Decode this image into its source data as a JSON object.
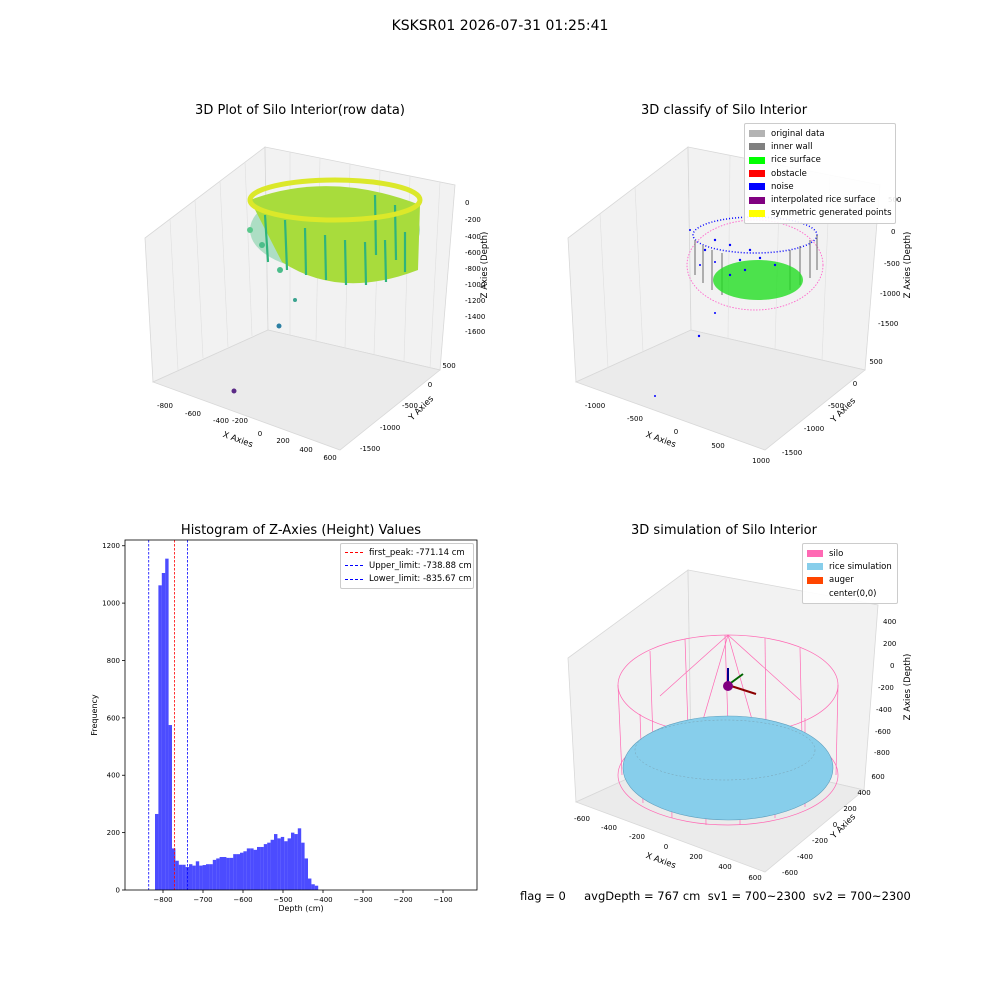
{
  "suptitle": "KSKSR01 2026-07-31 01:25:41",
  "panels": {
    "raw": {
      "title": "3D Plot of Silo Interior(row data)",
      "xlabel": "X Axies",
      "ylabel": "Y Axies",
      "zlabel": "Z Axies (Depth)",
      "xticks": [
        "-800",
        "-600",
        "-400",
        "-200",
        "0",
        "200",
        "400",
        "600"
      ],
      "yticks": [
        "500",
        "0",
        "-500",
        "-1000",
        "-1500"
      ],
      "zticks": [
        "0",
        "-200",
        "-400",
        "-600",
        "-800",
        "-1000",
        "-1200",
        "-1400",
        "-1600"
      ]
    },
    "classify": {
      "title": "3D classify of Silo Interior",
      "xlabel": "X Axies",
      "ylabel": "Y Axies",
      "zlabel": "Z Axies (Depth)",
      "xticks": [
        "-1000",
        "-500",
        "0",
        "500",
        "1000"
      ],
      "yticks": [
        "500",
        "0",
        "-500",
        "-1000",
        "-1500"
      ],
      "zticks": [
        "500",
        "0",
        "-500",
        "-1000",
        "-1500"
      ],
      "legend": [
        {
          "label": "original data",
          "color": "#b3b3b3"
        },
        {
          "label": "inner wall",
          "color": "#808080"
        },
        {
          "label": "rice surface",
          "color": "#00ff00"
        },
        {
          "label": "obstacle",
          "color": "#ff0000"
        },
        {
          "label": "noise",
          "color": "#0000ff"
        },
        {
          "label": "interpolated rice surface",
          "color": "#800080"
        },
        {
          "label": "symmetric generated points",
          "color": "#ffff00"
        }
      ]
    },
    "simulation": {
      "title": "3D simulation of Silo Interior",
      "xlabel": "X Axies",
      "ylabel": "Y Axies",
      "zlabel": "Z Axies (Depth)",
      "xticks": [
        "-600",
        "-400",
        "-200",
        "0",
        "200",
        "400",
        "600"
      ],
      "yticks": [
        "600",
        "400",
        "200",
        "0",
        "-200",
        "-400",
        "-600"
      ],
      "zticks": [
        "400",
        "200",
        "0",
        "-200",
        "-400",
        "-600",
        "-800"
      ],
      "legend": [
        {
          "label": "silo",
          "color": "#ff69b4"
        },
        {
          "label": "rice simulation",
          "color": "#87ceeb"
        },
        {
          "label": "auger",
          "color": "#ff4500"
        },
        {
          "label": "center(0,0)",
          "color": "transparent"
        }
      ],
      "footer": "flag = 0     avgDepth = 767 cm  sv1 = 700~2300  sv2 = 700~2300"
    }
  },
  "chart_data": {
    "type": "bar",
    "title": "Histogram of Z-Axies (Height) Values",
    "xlabel": "Depth (cm)",
    "ylabel": "Frequency",
    "xlim": [
      -895,
      -15
    ],
    "ylim": [
      0,
      1220
    ],
    "bin_width": 8.5,
    "bin_start": -820,
    "values": [
      265,
      1062,
      1105,
      1155,
      575,
      145,
      102,
      88,
      88,
      80,
      90,
      85,
      100,
      85,
      87,
      90,
      90,
      105,
      110,
      115,
      115,
      112,
      112,
      125,
      125,
      130,
      135,
      145,
      145,
      140,
      150,
      150,
      160,
      165,
      175,
      195,
      180,
      185,
      170,
      180,
      200,
      195,
      215,
      165,
      110,
      40,
      20,
      15
    ],
    "bar_color": "#0000ff",
    "xticks": [
      -800,
      -700,
      -600,
      -500,
      -400,
      -300,
      -200,
      -100
    ],
    "xtick_labels": [
      "−800",
      "−700",
      "−600",
      "−500",
      "−400",
      "−300",
      "−200",
      "−100"
    ],
    "yticks": [
      0,
      200,
      400,
      600,
      800,
      1000,
      1200
    ],
    "vlines": [
      {
        "label": "first_peak: -771.14 cm",
        "x": -771.14,
        "color": "#ff0000"
      },
      {
        "label": "Upper_limit: -738.88 cm",
        "x": -738.88,
        "color": "#0000ff"
      },
      {
        "label": "Lower_limit: -835.67 cm",
        "x": -835.67,
        "color": "#0000ff"
      }
    ]
  }
}
